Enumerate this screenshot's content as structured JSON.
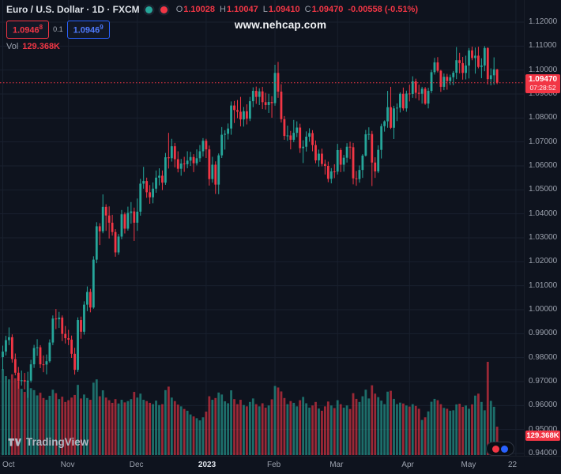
{
  "header": {
    "symbol_title": "Euro / U.S. Dollar · 1D · FXCM",
    "ohlc": {
      "o_label": "O",
      "o": "1.10028",
      "h_label": "H",
      "h": "1.10047",
      "l_label": "L",
      "l": "1.09410",
      "c_label": "C",
      "c": "1.09470",
      "change": "-0.00558 (-0.51%)"
    },
    "sell_price": "1.0946",
    "sell_sup": "8",
    "spread": "0.1",
    "buy_price": "1.0946",
    "buy_sup": "9",
    "vol_label": "Vol",
    "vol_value": "129.368K"
  },
  "watermark": "www.nehcap.com",
  "logo_text": "TradingView",
  "colors": {
    "bg": "#0e131e",
    "grid": "#19202e",
    "up": "#26a69a",
    "down": "#f23645",
    "axis_text": "#9ba1ad",
    "text": "#dde1e7",
    "accent_blue": "#2962ff",
    "badge": "#f23645"
  },
  "price_scale": {
    "labels": [
      {
        "text": "1.12000",
        "price": 1.12
      },
      {
        "text": "1.11000",
        "price": 1.11
      },
      {
        "text": "1.10000",
        "price": 1.1
      },
      {
        "text": "1.09000",
        "price": 1.09
      },
      {
        "text": "1.08000",
        "price": 1.08
      },
      {
        "text": "1.07000",
        "price": 1.07
      },
      {
        "text": "1.06000",
        "price": 1.06
      },
      {
        "text": "1.05000",
        "price": 1.05
      },
      {
        "text": "1.04000",
        "price": 1.04
      },
      {
        "text": "1.03000",
        "price": 1.03
      },
      {
        "text": "1.02000",
        "price": 1.02
      },
      {
        "text": "1.01000",
        "price": 1.01
      },
      {
        "text": "1.00000",
        "price": 1.0
      },
      {
        "text": "0.99000",
        "price": 0.99
      },
      {
        "text": "0.98000",
        "price": 0.98
      },
      {
        "text": "0.97000",
        "price": 0.97
      },
      {
        "text": "0.96000",
        "price": 0.96
      },
      {
        "text": "0.95000",
        "price": 0.95
      },
      {
        "text": "0.94000",
        "price": 0.94
      }
    ],
    "current": {
      "text": "1.09470",
      "countdown": "07:28:52",
      "price": 1.0947
    },
    "volume_badge": "129.368K"
  },
  "time_scale": {
    "ticks": [
      {
        "label": "Oct",
        "index": 0
      },
      {
        "label": "Nov",
        "index": 21
      },
      {
        "label": "Dec",
        "index": 43
      },
      {
        "label": "2023",
        "index": 65,
        "bold": true
      },
      {
        "label": "Feb",
        "index": 87
      },
      {
        "label": "Mar",
        "index": 107
      },
      {
        "label": "Apr",
        "index": 130
      },
      {
        "label": "May",
        "index": 149
      },
      {
        "label": "22",
        "index": 164
      }
    ]
  },
  "chart_data": {
    "type": "candlestick",
    "title": "Euro / U.S. Dollar",
    "timeframe": "1D",
    "exchange": "FXCM",
    "ylim": [
      0.94,
      1.12
    ],
    "price_step": 0.01,
    "volume_unit": "K",
    "volume_scale_max": 425,
    "current_bar": {
      "open": 1.10028,
      "high": 1.10047,
      "low": 1.0941,
      "close": 1.0947,
      "change": -0.00558,
      "change_pct": -0.51,
      "volume_k": 129.368
    },
    "candles_format": [
      "open",
      "high",
      "low",
      "close",
      "volume_k"
    ],
    "candles": [
      [
        0.9802,
        0.985,
        0.9748,
        0.9825,
        392
      ],
      [
        0.9825,
        0.9891,
        0.9809,
        0.9873,
        360
      ],
      [
        0.9873,
        0.9926,
        0.9852,
        0.9885,
        345
      ],
      [
        0.9885,
        0.9897,
        0.9779,
        0.9794,
        368
      ],
      [
        0.9794,
        0.9817,
        0.9726,
        0.9737,
        350
      ],
      [
        0.9737,
        0.9761,
        0.967,
        0.9702,
        335
      ],
      [
        0.9702,
        0.9746,
        0.9683,
        0.9706,
        302
      ],
      [
        0.9706,
        0.9736,
        0.9667,
        0.97,
        288
      ],
      [
        0.97,
        0.9741,
        0.9632,
        0.9704,
        338
      ],
      [
        0.9704,
        0.9791,
        0.9696,
        0.9772,
        305
      ],
      [
        0.9772,
        0.9853,
        0.9757,
        0.984,
        296
      ],
      [
        0.984,
        0.9877,
        0.9807,
        0.9843,
        272
      ],
      [
        0.9843,
        0.9852,
        0.9756,
        0.9772,
        284
      ],
      [
        0.9772,
        0.9809,
        0.9739,
        0.9771,
        260
      ],
      [
        0.9771,
        0.9813,
        0.973,
        0.9785,
        252
      ],
      [
        0.9785,
        0.9876,
        0.9779,
        0.9863,
        270
      ],
      [
        0.9863,
        0.9976,
        0.9852,
        0.9963,
        298
      ],
      [
        0.9963,
        1.0003,
        0.9919,
        0.996,
        282
      ],
      [
        0.996,
        0.9991,
        0.9924,
        0.9967,
        255
      ],
      [
        0.9967,
        0.9976,
        0.9869,
        0.9899,
        266
      ],
      [
        0.9899,
        0.9932,
        0.9859,
        0.9881,
        242
      ],
      [
        0.9881,
        0.9916,
        0.9852,
        0.9875,
        250
      ],
      [
        0.9875,
        0.9892,
        0.9799,
        0.9816,
        262
      ],
      [
        0.9816,
        0.9841,
        0.9729,
        0.9749,
        274
      ],
      [
        0.9749,
        0.9968,
        0.974,
        0.9957,
        320
      ],
      [
        0.9957,
        0.9971,
        0.9879,
        0.9908,
        258
      ],
      [
        0.9908,
        1.0035,
        0.9896,
        1.0021,
        276
      ],
      [
        1.0021,
        1.0097,
        0.9994,
        1.0074,
        260
      ],
      [
        1.0074,
        1.0087,
        0.9989,
        1.0009,
        252
      ],
      [
        1.0009,
        1.0223,
        1.0004,
        1.0209,
        330
      ],
      [
        1.0209,
        1.0365,
        1.0194,
        1.0348,
        345
      ],
      [
        1.0348,
        1.0361,
        1.027,
        1.0327,
        268
      ],
      [
        1.0327,
        1.0481,
        1.0319,
        1.0429,
        295
      ],
      [
        1.0429,
        1.044,
        1.0329,
        1.0393,
        262
      ],
      [
        1.0393,
        1.0431,
        1.0297,
        1.0363,
        250
      ],
      [
        1.0363,
        1.0396,
        1.0309,
        1.0324,
        238
      ],
      [
        1.0324,
        1.0336,
        1.0221,
        1.0239,
        255
      ],
      [
        1.0239,
        1.0316,
        1.0229,
        1.0305,
        235
      ],
      [
        1.0305,
        1.0416,
        1.0294,
        1.0398,
        252
      ],
      [
        1.0398,
        1.0406,
        1.0318,
        1.0338,
        240
      ],
      [
        1.0338,
        1.043,
        1.033,
        1.0404,
        246
      ],
      [
        1.0404,
        1.0449,
        1.0359,
        1.041,
        255
      ],
      [
        1.041,
        1.0426,
        1.0287,
        1.0363,
        288
      ],
      [
        1.0363,
        1.0464,
        1.0329,
        1.0409,
        262
      ],
      [
        1.0409,
        1.0546,
        1.0392,
        1.0526,
        280
      ],
      [
        1.0526,
        1.0596,
        1.0505,
        1.0537,
        252
      ],
      [
        1.0537,
        1.0551,
        1.0467,
        1.049,
        246
      ],
      [
        1.049,
        1.052,
        1.0442,
        1.0469,
        238
      ],
      [
        1.0469,
        1.0531,
        1.0444,
        1.0505,
        232
      ],
      [
        1.0505,
        1.0581,
        1.0488,
        1.0551,
        248
      ],
      [
        1.0551,
        1.059,
        1.0519,
        1.0559,
        228
      ],
      [
        1.0559,
        1.0581,
        1.0499,
        1.053,
        232
      ],
      [
        1.053,
        1.0654,
        1.0521,
        1.0636,
        296
      ],
      [
        1.0636,
        1.0738,
        1.0589,
        1.0632,
        312
      ],
      [
        1.0632,
        1.0713,
        1.0618,
        1.0682,
        262
      ],
      [
        1.0682,
        1.0696,
        1.0594,
        1.0628,
        246
      ],
      [
        1.0628,
        1.0661,
        1.0573,
        1.0588,
        230
      ],
      [
        1.0588,
        1.0629,
        1.0559,
        1.061,
        222
      ],
      [
        1.061,
        1.0638,
        1.0575,
        1.0607,
        210
      ],
      [
        1.0607,
        1.0661,
        1.059,
        1.0622,
        202
      ],
      [
        1.0622,
        1.0659,
        1.06,
        1.0637,
        185
      ],
      [
        1.0637,
        1.0649,
        1.0574,
        1.0611,
        176
      ],
      [
        1.0611,
        1.0669,
        1.0602,
        1.0632,
        168
      ],
      [
        1.0632,
        1.0687,
        1.0617,
        1.0661,
        158
      ],
      [
        1.0661,
        1.0716,
        1.0639,
        1.0705,
        172
      ],
      [
        1.0705,
        1.0713,
        1.0633,
        1.0669,
        198
      ],
      [
        1.0669,
        1.0685,
        1.0518,
        1.0545,
        268
      ],
      [
        1.0545,
        1.0638,
        1.053,
        1.0605,
        252
      ],
      [
        1.0605,
        1.0619,
        1.0483,
        1.0522,
        260
      ],
      [
        1.0522,
        1.0652,
        1.0482,
        1.0644,
        285
      ],
      [
        1.0644,
        1.0762,
        1.0633,
        1.073,
        276
      ],
      [
        1.073,
        1.0749,
        1.0668,
        1.0734,
        245
      ],
      [
        1.0734,
        1.0777,
        1.071,
        1.0756,
        236
      ],
      [
        1.0756,
        1.0869,
        1.073,
        1.0852,
        295
      ],
      [
        1.0852,
        1.0871,
        1.0779,
        1.0833,
        255
      ],
      [
        1.0833,
        1.0875,
        1.0799,
        1.0826,
        232
      ],
      [
        1.0826,
        1.0888,
        1.0765,
        1.0794,
        252
      ],
      [
        1.0794,
        1.0846,
        1.0764,
        1.0828,
        228
      ],
      [
        1.0828,
        1.0857,
        1.0773,
        1.0797,
        222
      ],
      [
        1.0797,
        1.0888,
        1.0787,
        1.087,
        242
      ],
      [
        1.087,
        1.0928,
        1.0845,
        1.0913,
        258
      ],
      [
        1.0913,
        1.0931,
        1.0859,
        1.0888,
        232
      ],
      [
        1.0888,
        1.0924,
        1.0854,
        1.0911,
        222
      ],
      [
        1.0911,
        1.093,
        1.0837,
        1.0866,
        236
      ],
      [
        1.0866,
        1.0905,
        1.0835,
        1.0854,
        216
      ],
      [
        1.0854,
        1.0901,
        1.0821,
        1.0867,
        226
      ],
      [
        1.0867,
        1.0891,
        1.0801,
        1.0862,
        254
      ],
      [
        1.0862,
        1.1022,
        1.0851,
        1.0988,
        315
      ],
      [
        1.0988,
        1.1034,
        1.0884,
        1.091,
        308
      ],
      [
        1.091,
        1.0941,
        1.0781,
        1.0795,
        290
      ],
      [
        1.0795,
        1.0808,
        1.0709,
        1.0725,
        260
      ],
      [
        1.0725,
        1.0768,
        1.0705,
        1.0727,
        232
      ],
      [
        1.0727,
        1.0746,
        1.0669,
        1.0709,
        246
      ],
      [
        1.0709,
        1.0792,
        1.0699,
        1.0738,
        238
      ],
      [
        1.0738,
        1.0786,
        1.072,
        1.076,
        222
      ],
      [
        1.076,
        1.0776,
        1.0654,
        1.0674,
        250
      ],
      [
        1.0674,
        1.0707,
        1.0612,
        1.068,
        265
      ],
      [
        1.068,
        1.0744,
        1.066,
        1.0722,
        236
      ],
      [
        1.0722,
        1.0757,
        1.0701,
        1.0737,
        216
      ],
      [
        1.0737,
        1.0749,
        1.0661,
        1.0687,
        226
      ],
      [
        1.0687,
        1.0706,
        1.0611,
        1.0623,
        242
      ],
      [
        1.0623,
        1.0668,
        1.0597,
        1.0651,
        212
      ],
      [
        1.0651,
        1.0672,
        1.0598,
        1.0608,
        202
      ],
      [
        1.0608,
        1.0626,
        1.0564,
        1.06,
        222
      ],
      [
        1.06,
        1.0618,
        1.0532,
        1.0546,
        244
      ],
      [
        1.0546,
        1.0591,
        1.0527,
        1.0577,
        226
      ],
      [
        1.0577,
        1.0607,
        1.0549,
        1.0576,
        214
      ],
      [
        1.0576,
        1.0692,
        1.0564,
        1.0666,
        250
      ],
      [
        1.0666,
        1.0674,
        1.0574,
        1.0605,
        232
      ],
      [
        1.0605,
        1.0646,
        1.0576,
        1.0634,
        216
      ],
      [
        1.0634,
        1.0695,
        1.0614,
        1.068,
        226
      ],
      [
        1.068,
        1.0701,
        1.0629,
        1.0678,
        210
      ],
      [
        1.0678,
        1.0696,
        1.0523,
        1.0548,
        282
      ],
      [
        1.0548,
        1.0579,
        1.0517,
        1.0545,
        256
      ],
      [
        1.0545,
        1.0602,
        1.053,
        1.0583,
        242
      ],
      [
        1.0583,
        1.0649,
        1.055,
        1.0643,
        268
      ],
      [
        1.0643,
        1.075,
        1.0639,
        1.0732,
        298
      ],
      [
        1.0732,
        1.0761,
        1.0709,
        1.0733,
        258
      ],
      [
        1.0733,
        1.0746,
        1.0516,
        1.0614,
        318
      ],
      [
        1.0614,
        1.0636,
        1.055,
        1.0577,
        280
      ],
      [
        1.0577,
        1.0686,
        1.057,
        1.0667,
        264
      ],
      [
        1.0667,
        1.0776,
        1.0631,
        1.0766,
        248
      ],
      [
        1.0766,
        1.079,
        1.0743,
        1.0786,
        232
      ],
      [
        1.0786,
        1.0913,
        1.0759,
        1.0845,
        289
      ],
      [
        1.0845,
        1.093,
        1.0754,
        1.0759,
        293
      ],
      [
        1.0759,
        1.0851,
        1.0712,
        1.084,
        256
      ],
      [
        1.084,
        1.0861,
        1.0787,
        1.0843,
        232
      ],
      [
        1.0843,
        1.0907,
        1.0823,
        1.0901,
        239
      ],
      [
        1.0901,
        1.0927,
        1.0831,
        1.084,
        235
      ],
      [
        1.084,
        1.0914,
        1.0826,
        1.0902,
        226
      ],
      [
        1.0902,
        1.0939,
        1.0869,
        1.09,
        221
      ],
      [
        1.09,
        1.0974,
        1.0884,
        1.0953,
        232
      ],
      [
        1.0953,
        1.0964,
        1.0882,
        1.0905,
        224
      ],
      [
        1.0905,
        1.0939,
        1.0873,
        1.0901,
        211
      ],
      [
        1.0901,
        1.093,
        1.086,
        1.0922,
        160
      ],
      [
        1.0922,
        1.0929,
        1.0855,
        1.086,
        172
      ],
      [
        1.086,
        1.0926,
        1.084,
        1.0913,
        199
      ],
      [
        1.0913,
        1.1001,
        1.0904,
        1.0991,
        243
      ],
      [
        1.0991,
        1.1051,
        1.0981,
        1.1032,
        256
      ],
      [
        1.1032,
        1.1054,
        1.099,
        1.0997,
        250
      ],
      [
        1.0997,
        1.1001,
        1.0909,
        1.093,
        232
      ],
      [
        1.093,
        1.0986,
        1.0916,
        1.0972,
        215
      ],
      [
        1.0972,
        1.0984,
        1.0918,
        1.0954,
        211
      ],
      [
        1.0954,
        1.0981,
        1.0937,
        1.097,
        202
      ],
      [
        1.097,
        1.0996,
        1.0937,
        1.0989,
        204
      ],
      [
        1.0989,
        1.1096,
        1.0962,
        1.1041,
        231
      ],
      [
        1.1041,
        1.1072,
        1.0986,
        1.1029,
        234
      ],
      [
        1.1029,
        1.1055,
        1.096,
        1.0988,
        220
      ],
      [
        1.0988,
        1.106,
        1.0961,
        1.1019,
        226
      ],
      [
        1.1019,
        1.1092,
        1.0965,
        1.1082,
        211
      ],
      [
        1.1082,
        1.1098,
        1.1041,
        1.105,
        231
      ],
      [
        1.105,
        1.1094,
        1.0985,
        1.106,
        271
      ],
      [
        1.106,
        1.1097,
        1.1007,
        1.1013,
        280
      ],
      [
        1.1013,
        1.1049,
        1.0966,
        1.1019,
        242
      ],
      [
        1.1019,
        1.11,
        1.0995,
        1.1092,
        204
      ],
      [
        1.1092,
        1.1095,
        1.094,
        1.0962,
        425
      ],
      [
        1.0962,
        1.1007,
        1.0936,
        1.0978,
        247
      ],
      [
        1.0978,
        1.1053,
        1.0939,
        1.1003,
        220
      ],
      [
        1.10028,
        1.10047,
        1.0941,
        1.0947,
        129.368
      ]
    ]
  }
}
